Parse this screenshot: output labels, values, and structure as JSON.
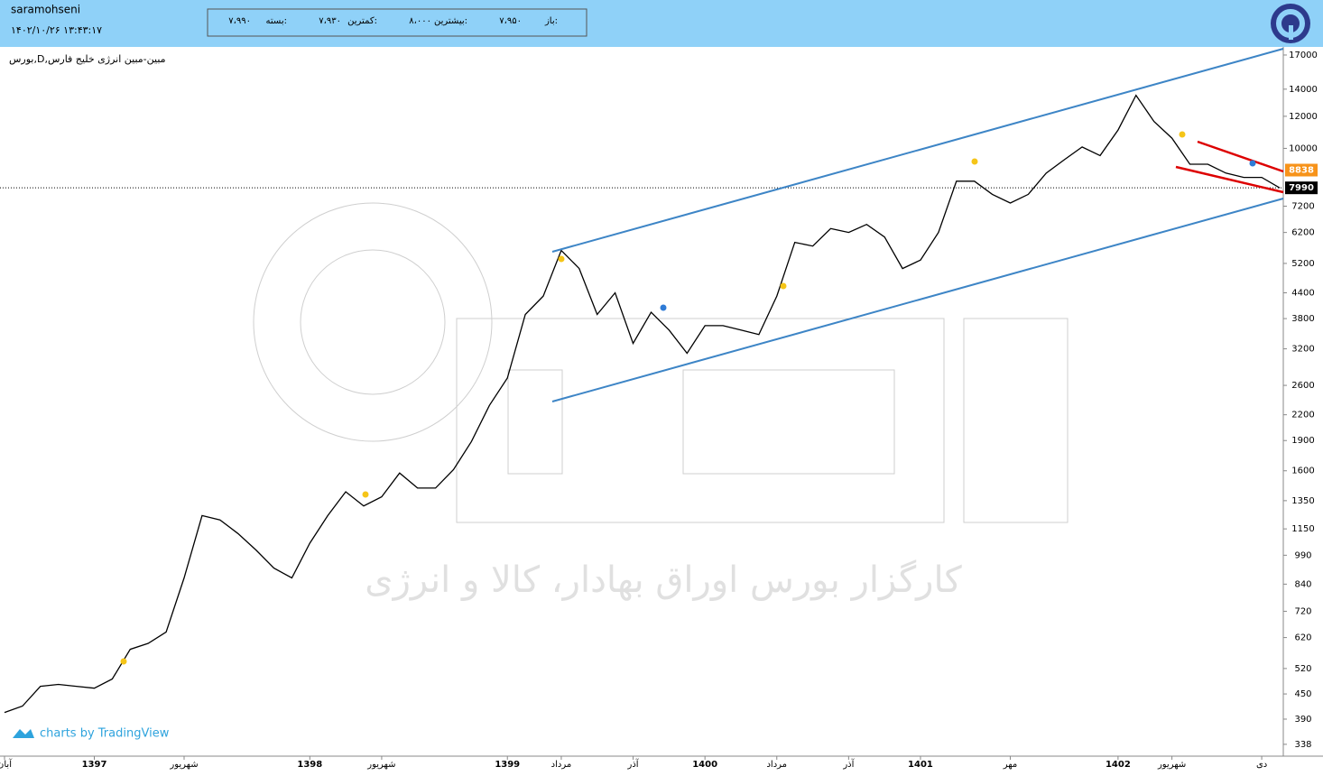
{
  "header": {
    "user": "saramohseni",
    "datetime": "۱۴۰۲/۱۰/۲۶ ۱۳:۴۳:۱۷",
    "quote": [
      {
        "label": "باز:",
        "value": "۷،۹۵۰"
      },
      {
        "label": "بیشترین:",
        "value": "۸،۰۰۰"
      },
      {
        "label": "کمترین:",
        "value": "۷،۹۳۰"
      },
      {
        "label": "بسته:",
        "value": "۷،۹۹۰"
      }
    ]
  },
  "chart_data": {
    "type": "line",
    "title": "بورس,D,مبین-مبین انرژی خلیج فارس",
    "watermark": "کارگزار بورس اوراق بهادار، کالا و انرژی",
    "credit": "charts by TradingView",
    "log_scale": true,
    "categories": [
      "آبان",
      null,
      null,
      null,
      null,
      "1397",
      null,
      null,
      null,
      null,
      "شهریور",
      null,
      null,
      null,
      null,
      null,
      null,
      "1398",
      null,
      null,
      null,
      "شهریور",
      null,
      null,
      null,
      null,
      null,
      null,
      "1399",
      null,
      null,
      "مرداد",
      null,
      null,
      null,
      "آذر",
      null,
      null,
      null,
      "1400",
      null,
      null,
      null,
      "مرداد",
      null,
      null,
      null,
      "آذر",
      null,
      null,
      null,
      "1401",
      null,
      null,
      null,
      null,
      "مهر",
      null,
      null,
      null,
      null,
      null,
      "1402",
      null,
      null,
      "شهریور",
      null,
      null,
      null,
      null,
      "دی",
      null
    ],
    "series": [
      {
        "color": "#000000",
        "values": [
          405,
          420,
          470,
          475,
          470,
          465,
          490,
          580,
          600,
          640,
          870,
          1240,
          1210,
          1120,
          1020,
          920,
          870,
          1060,
          1240,
          1420,
          1310,
          1380,
          1580,
          1450,
          1450,
          1610,
          1890,
          2320,
          2710,
          3890,
          4320,
          5600,
          5050,
          3890,
          4400,
          3300,
          3940,
          3560,
          3120,
          3650,
          3650,
          3560,
          3470,
          4320,
          5860,
          5740,
          6340,
          6200,
          6490,
          6040,
          5050,
          5300,
          6200,
          8300,
          8300,
          7700,
          7330,
          7700,
          8690,
          9370,
          10080,
          9600,
          11100,
          13520,
          11650,
          10600,
          9140,
          9140,
          8690,
          8480,
          8480,
          7990
        ]
      }
    ],
    "ylim": [
      316,
      17800
    ],
    "yticks": [
      338,
      390,
      450,
      520,
      620,
      720,
      840,
      990,
      1150,
      1350,
      1600,
      1900,
      2200,
      2600,
      3200,
      3800,
      4400,
      5200,
      6200,
      7200,
      10000,
      12000,
      14000,
      17000
    ],
    "price_labels": [
      {
        "value": 8838,
        "color": "#f7931a"
      },
      {
        "value": 7990,
        "color": "#000000"
      }
    ]
  }
}
